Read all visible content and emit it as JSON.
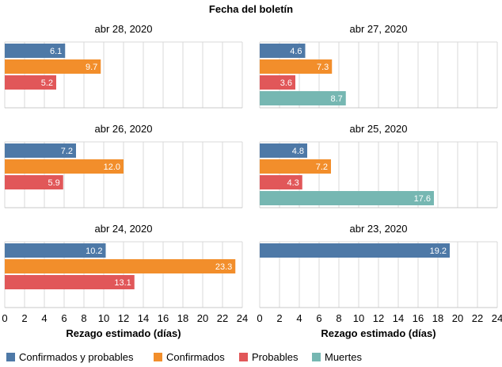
{
  "chart_data": {
    "type": "bar",
    "orientation": "horizontal",
    "title": "Fecha del boletín",
    "xlabel": "Rezago estimado (días)",
    "xlim": [
      0,
      24
    ],
    "xticks": [
      0,
      2,
      4,
      6,
      8,
      10,
      12,
      14,
      16,
      18,
      20,
      22,
      24
    ],
    "grid": true,
    "legend_position": "bottom",
    "series": [
      {
        "name": "Confirmados y probables",
        "color": "#4e79a7"
      },
      {
        "name": "Confirmados",
        "color": "#f28e2b"
      },
      {
        "name": "Probables",
        "color": "#e15759"
      },
      {
        "name": "Muertes",
        "color": "#76b7b2"
      }
    ],
    "facets": [
      {
        "label": "abr 28, 2020",
        "values": [
          6.1,
          9.7,
          5.2,
          null
        ],
        "value_labels": [
          "6.1",
          "9.7",
          "5.2",
          ""
        ]
      },
      {
        "label": "abr 27, 2020",
        "values": [
          4.6,
          7.3,
          3.6,
          8.7
        ],
        "value_labels": [
          "4.6",
          "7.3",
          "3.6",
          "8.7"
        ]
      },
      {
        "label": "abr 26, 2020",
        "values": [
          7.2,
          12.0,
          5.9,
          null
        ],
        "value_labels": [
          "7.2",
          "12.0",
          "5.9",
          ""
        ]
      },
      {
        "label": "abr 25, 2020",
        "values": [
          4.8,
          7.2,
          4.3,
          17.6
        ],
        "value_labels": [
          "4.8",
          "7.2",
          "4.3",
          "17.6"
        ]
      },
      {
        "label": "abr 24, 2020",
        "values": [
          10.2,
          23.3,
          13.1,
          null
        ],
        "value_labels": [
          "10.2",
          "23.3",
          "13.1",
          ""
        ]
      },
      {
        "label": "abr 23, 2020",
        "values": [
          19.2,
          null,
          null,
          null
        ],
        "value_labels": [
          "19.2",
          "",
          "",
          ""
        ]
      }
    ]
  }
}
